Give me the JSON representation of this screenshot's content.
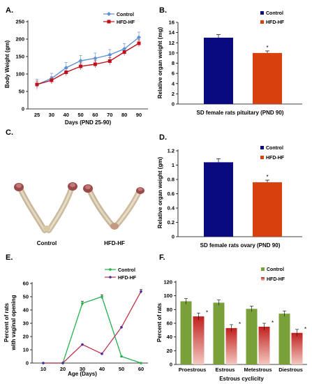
{
  "colors": {
    "control_line_A": "#5b8fd6",
    "hfd_line_A": "#c0101a",
    "control_bar": "#0a0a80",
    "hfd_bar": "#d8400e",
    "control_line_E": "#22b24c",
    "hfd_line_E": "#c0304a",
    "hfd_marker_E": "#4a2aa0",
    "control_bar_F": "#7aa03a",
    "hfd_bar_F_top": "#c0201e",
    "hfd_bar_F_bottom": "#f4c8c0"
  },
  "photo": {
    "label": "C.",
    "captions": [
      "Control",
      "HFD-HF"
    ]
  },
  "chart_data": [
    {
      "label": "A.",
      "type": "line",
      "x": [
        25,
        30,
        40,
        50,
        60,
        70,
        80,
        90
      ],
      "series": [
        {
          "name": "Control",
          "values": [
            70,
            87,
            118,
            138,
            145,
            155,
            172,
            205
          ],
          "errors": [
            15,
            15,
            15,
            15,
            15,
            15,
            15,
            15
          ]
        },
        {
          "name": "HFD-HF",
          "values": [
            70,
            82,
            105,
            122,
            128,
            137,
            163,
            188
          ],
          "errors": [
            10,
            10,
            10,
            10,
            10,
            10,
            10,
            10
          ]
        }
      ],
      "xlabel": "Days (PND 25-90)",
      "ylabel": "Body Weight (gm)",
      "ylim": [
        0,
        250
      ],
      "yticks": [
        0,
        50,
        100,
        150,
        200,
        250
      ],
      "xtick_labels": [
        "25",
        "30",
        "40",
        "50",
        "60",
        "70",
        "80",
        "90"
      ],
      "legend": "top-left",
      "grid": false
    },
    {
      "label": "B.",
      "type": "bar",
      "categories": [
        "Control",
        "HFD-HF"
      ],
      "values": [
        13,
        10
      ],
      "errors": [
        0.6,
        0.4
      ],
      "annotations": [
        "",
        "*"
      ],
      "xlabel": "SD female rats pituitary (PND 90)",
      "ylabel": "Relative organ weight (mg)",
      "ylim": [
        0,
        16
      ],
      "yticks": [
        0,
        2,
        4,
        6,
        8,
        10,
        12,
        14,
        16
      ],
      "legend": "top-right",
      "grid": false
    },
    {
      "label": "D.",
      "type": "bar",
      "categories": [
        "Control",
        "HFD-HF"
      ],
      "values": [
        1.04,
        0.76
      ],
      "errors": [
        0.05,
        0.03
      ],
      "annotations": [
        "",
        "*"
      ],
      "xlabel": "SD female rats ovary (PND 90)",
      "ylabel": "Relative organ weight (gm)",
      "ylim": [
        0,
        1.2
      ],
      "yticks": [
        0,
        0.2,
        0.4,
        0.6,
        0.8,
        1,
        1.2
      ],
      "ytick_labels": [
        "0",
        "0.2",
        "0.4",
        "0.6",
        "0.8",
        "1",
        "1.2"
      ],
      "legend": "top-right",
      "grid": false
    },
    {
      "label": "E.",
      "type": "line",
      "x": [
        10,
        20,
        30,
        40,
        50,
        60
      ],
      "series": [
        {
          "name": "Control",
          "values": [
            0,
            0,
            45,
            50,
            5,
            0
          ],
          "errors": [
            0,
            0,
            1.5,
            1.5,
            0,
            0
          ]
        },
        {
          "name": "HFD-HF",
          "values": [
            0,
            0,
            14,
            7,
            27,
            54
          ],
          "errors": [
            0,
            0,
            0,
            0,
            0,
            1.5
          ]
        }
      ],
      "xlabel": "Age (Days)",
      "ylabel": "Percent of rats with vaginal opening",
      "ylim": [
        0,
        60
      ],
      "yticks": [
        0,
        10,
        20,
        30,
        40,
        50,
        60
      ],
      "xtick_labels": [
        "10",
        "20",
        "30",
        "40",
        "50",
        "60"
      ],
      "legend": "top-right",
      "grid": false
    },
    {
      "label": "F.",
      "type": "bar",
      "categories": [
        "Proestrous",
        "Estrous",
        "Metestrous",
        "Diestrous"
      ],
      "series": [
        {
          "name": "Control",
          "values": [
            92,
            90,
            81,
            74
          ],
          "errors": [
            4,
            4,
            4,
            4
          ]
        },
        {
          "name": "HFD-HF",
          "values": [
            70,
            53,
            55,
            46
          ],
          "errors": [
            5,
            5,
            5,
            5
          ]
        }
      ],
      "annotations": [
        "*",
        "*",
        "*",
        "*"
      ],
      "xlabel": "Estrous cyclicity",
      "ylabel": "Percent of rats",
      "ylim": [
        0,
        120
      ],
      "yticks": [
        0,
        20,
        40,
        60,
        80,
        100,
        120
      ],
      "legend": "top-right",
      "grid": false
    }
  ]
}
